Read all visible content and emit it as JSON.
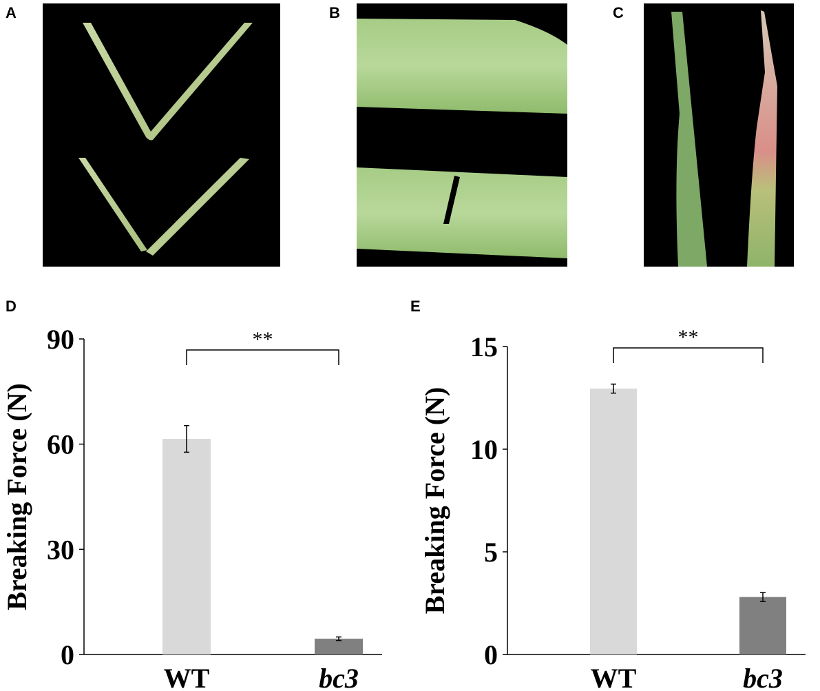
{
  "panels": {
    "A": {
      "letter": "A"
    },
    "B": {
      "letter": "B"
    },
    "C": {
      "letter": "C"
    },
    "D": {
      "letter": "D"
    },
    "E": {
      "letter": "E"
    }
  },
  "colors": {
    "wt_bar": "#d9d9d9",
    "bc3_bar": "#808080",
    "leaf_green": "#9cc27a",
    "photo_bg": "#000000"
  },
  "chart_data": [
    {
      "type": "bar",
      "panel": "D",
      "ylabel": "Breaking Force (N)",
      "categories": [
        "WT",
        "bc3"
      ],
      "values": [
        61.5,
        4.5
      ],
      "errors": [
        3.8,
        0.5
      ],
      "ylim": [
        0,
        90
      ],
      "yticks": [
        "0",
        "30",
        "60",
        "90"
      ],
      "yticks_values": [
        0,
        30,
        60,
        90
      ],
      "significance": "**",
      "grid": false
    },
    {
      "type": "bar",
      "panel": "E",
      "ylabel": "Breaking Force (N)",
      "categories": [
        "WT",
        "bc3"
      ],
      "values": [
        12.95,
        2.8
      ],
      "errors": [
        0.22,
        0.22
      ],
      "ylim": [
        0,
        15
      ],
      "yticks": [
        "0",
        "5",
        "10",
        "15"
      ],
      "yticks_values": [
        0,
        5,
        10,
        15
      ],
      "significance": "**",
      "grid": false
    }
  ]
}
